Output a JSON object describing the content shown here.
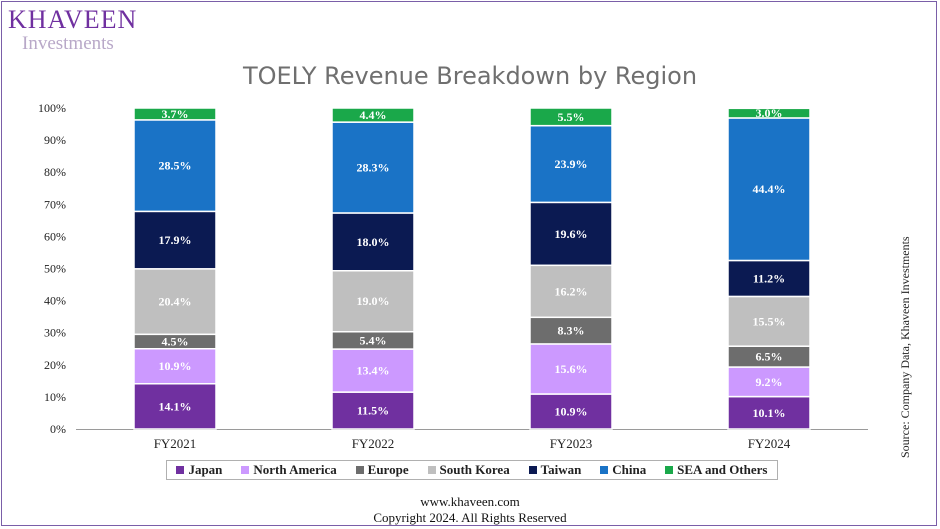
{
  "logo": {
    "main": "KHAVEEN",
    "sub": "Investments"
  },
  "chart_data": {
    "type": "bar",
    "stacked": true,
    "title": "TOELY Revenue Breakdown by Region",
    "categories": [
      "FY2021",
      "FY2022",
      "FY2023",
      "FY2024"
    ],
    "ylim": [
      0,
      100
    ],
    "yticks": [
      "0%",
      "10%",
      "20%",
      "30%",
      "40%",
      "50%",
      "60%",
      "70%",
      "80%",
      "90%",
      "100%"
    ],
    "series": [
      {
        "name": "Japan",
        "color": "#7030a0",
        "values": [
          14.1,
          11.5,
          10.9,
          10.1
        ],
        "labels": [
          "14.1%",
          "11.5%",
          "10.9%",
          "10.1%"
        ]
      },
      {
        "name": "North America",
        "color": "#cc99ff",
        "values": [
          10.9,
          13.4,
          15.6,
          9.2
        ],
        "labels": [
          "10.9%",
          "13.4%",
          "15.6%",
          "9.2%"
        ]
      },
      {
        "name": "Europe",
        "color": "#6d6d6d",
        "values": [
          4.5,
          5.4,
          8.3,
          6.5
        ],
        "labels": [
          "4.5%",
          "5.4%",
          "8.3%",
          "6.5%"
        ]
      },
      {
        "name": "South Korea",
        "color": "#bfbfbf",
        "values": [
          20.4,
          19.0,
          16.2,
          15.5
        ],
        "labels": [
          "20.4%",
          "19.0%",
          "16.2%",
          "15.5%"
        ]
      },
      {
        "name": "Taiwan",
        "color": "#0b1a52",
        "values": [
          17.9,
          18.0,
          19.6,
          11.2
        ],
        "labels": [
          "17.9%",
          "18.0%",
          "19.6%",
          "11.2%"
        ]
      },
      {
        "name": "China",
        "color": "#1a73c6",
        "values": [
          28.5,
          28.3,
          23.9,
          44.4
        ],
        "labels": [
          "28.5%",
          "28.3%",
          "23.9%",
          "44.4%"
        ]
      },
      {
        "name": "SEA and Others",
        "color": "#1aa84a",
        "values": [
          3.7,
          4.4,
          5.5,
          3.0
        ],
        "labels": [
          "3.7%",
          "4.4%",
          "5.5%",
          "3.0%"
        ]
      }
    ],
    "legend_position": "bottom",
    "grid": false
  },
  "source_text": "Source: Company Data, Khaveen Investments",
  "footer": {
    "website": "www.khaveen.com",
    "copyright": "Copyright 2024. All Rights Reserved"
  }
}
